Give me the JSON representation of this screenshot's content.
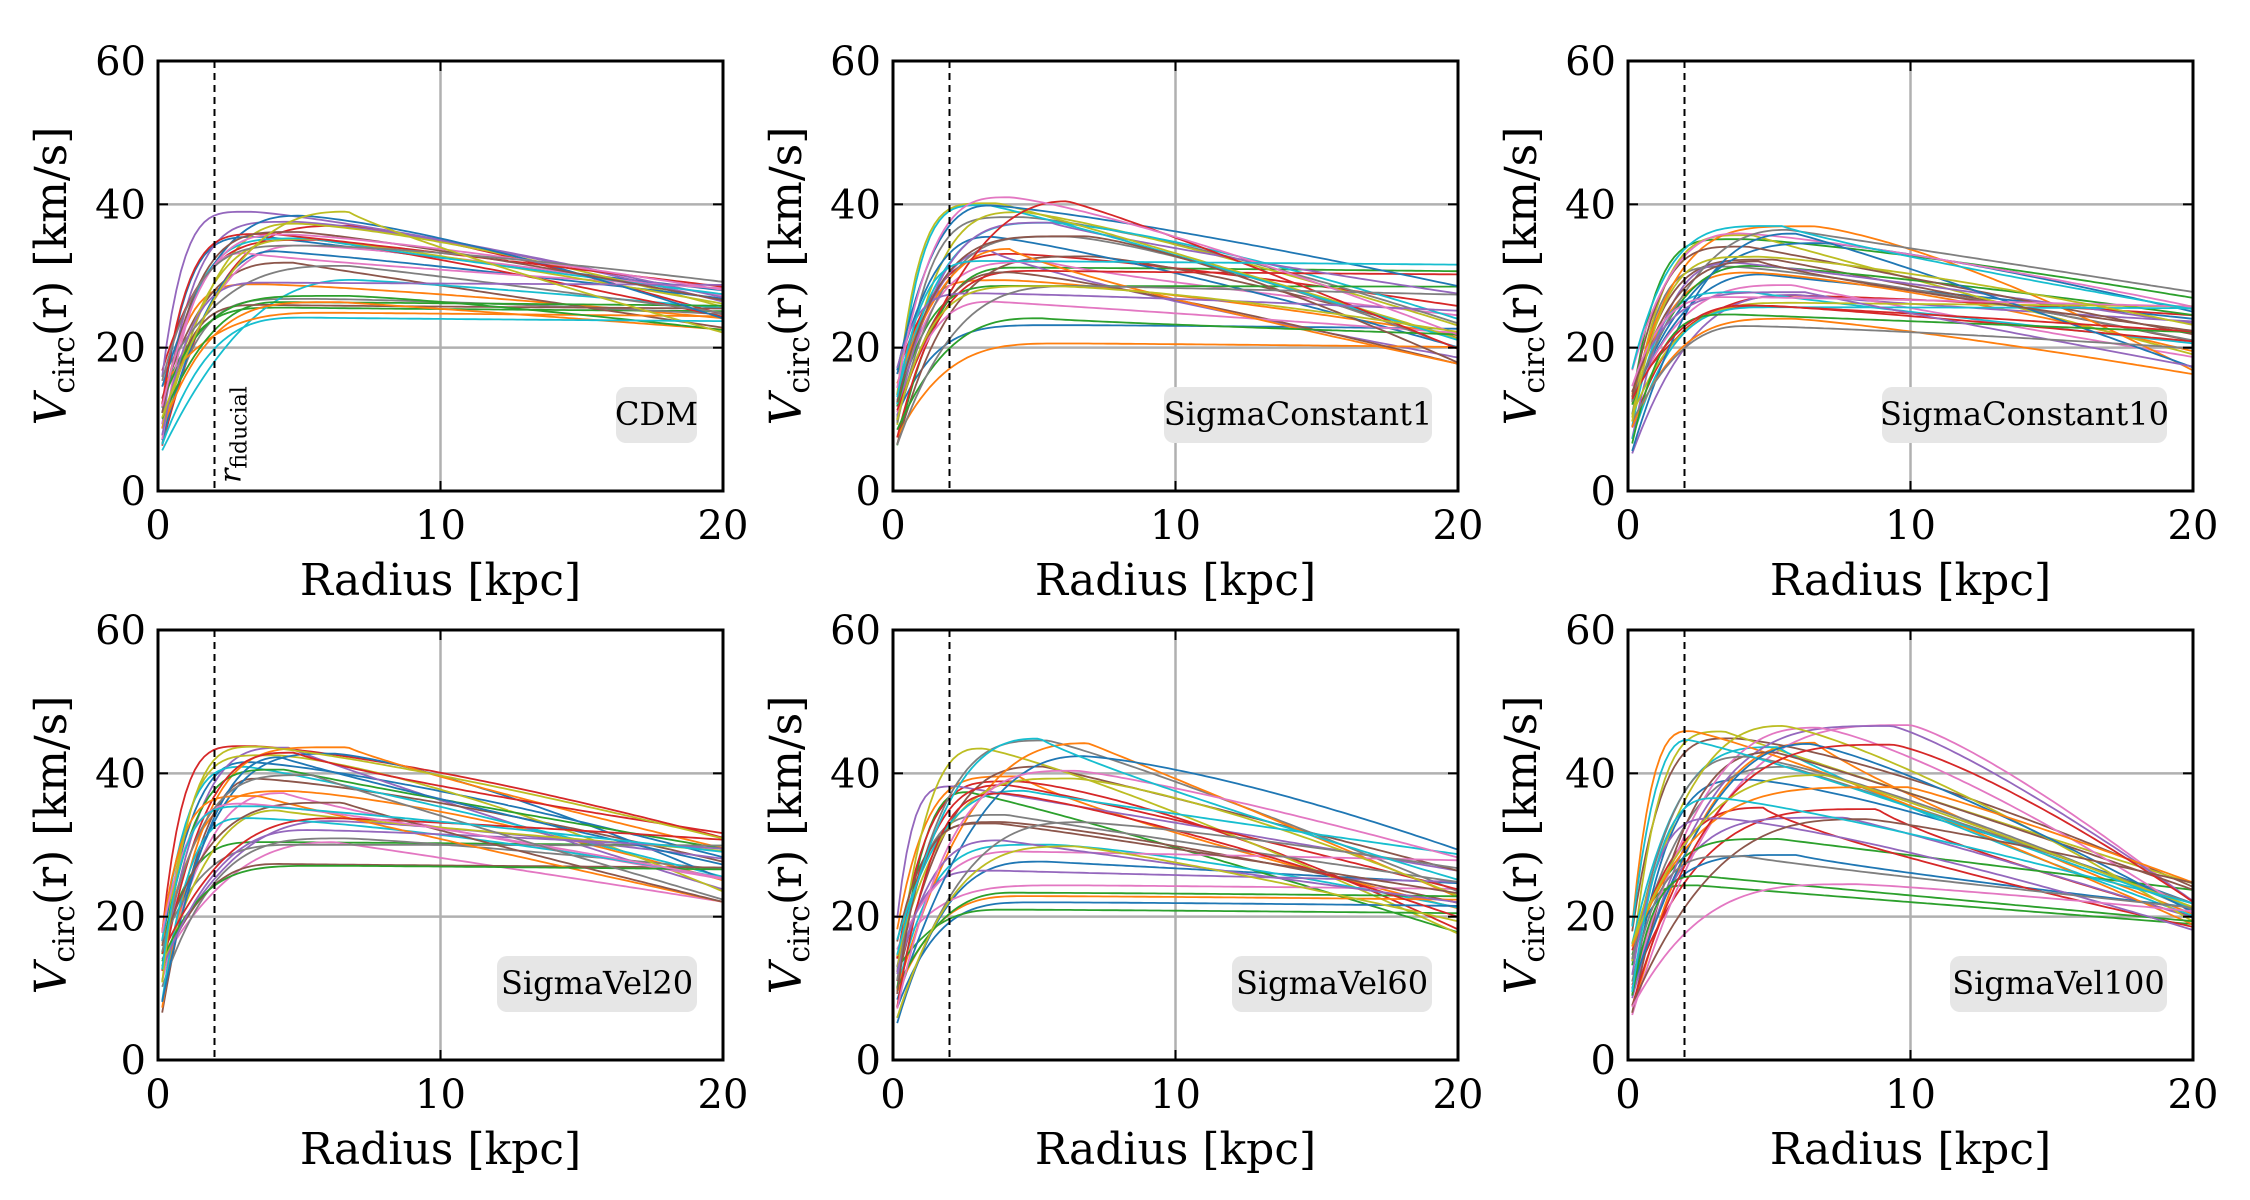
{
  "chart_data": [
    {
      "type": "line",
      "label": "CDM",
      "ylabel": "V_circ(r) [km/s]",
      "ylabel_main": "V",
      "ylabel_sub": "circ",
      "ylabel_arg": "(r)",
      "ylabel_unit": "[km/s]",
      "xlabel": "Radius [kpc]",
      "xlim": [
        0,
        20
      ],
      "ylim": [
        0,
        60
      ],
      "xticks": [
        "0",
        "10",
        "20"
      ],
      "yticks": [
        "0",
        "20",
        "40",
        "60"
      ],
      "grid": true,
      "fiducial_radius": 2,
      "fiducial_label": "r",
      "fiducial_label_sub": "fiducial",
      "curve_family": {
        "count": 30,
        "peak_range_kms": [
          24,
          39
        ],
        "peak_radius_kpc": [
          3,
          7
        ],
        "value_at_20kpc_kms": [
          22,
          30
        ]
      }
    },
    {
      "type": "line",
      "label": "SigmaConstant1",
      "ylabel": "V_circ(r) [km/s]",
      "ylabel_main": "V",
      "ylabel_sub": "circ",
      "ylabel_arg": "(r)",
      "ylabel_unit": "[km/s]",
      "xlabel": "Radius [kpc]",
      "xlim": [
        0,
        20
      ],
      "ylim": [
        0,
        60
      ],
      "xticks": [
        "0",
        "10",
        "20"
      ],
      "yticks": [
        "0",
        "20",
        "40",
        "60"
      ],
      "grid": true,
      "fiducial_radius": 2,
      "curve_family": {
        "count": 30,
        "peak_range_kms": [
          20,
          41
        ],
        "peak_radius_kpc": [
          3,
          7
        ],
        "value_at_20kpc_kms": [
          17,
          34
        ]
      }
    },
    {
      "type": "line",
      "label": "SigmaConstant10",
      "ylabel": "V_circ(r) [km/s]",
      "ylabel_main": "V",
      "ylabel_sub": "circ",
      "ylabel_arg": "(r)",
      "ylabel_unit": "[km/s]",
      "xlabel": "Radius [kpc]",
      "xlim": [
        0,
        20
      ],
      "ylim": [
        0,
        60
      ],
      "xticks": [
        "0",
        "10",
        "20"
      ],
      "yticks": [
        "0",
        "20",
        "40",
        "60"
      ],
      "grid": true,
      "fiducial_radius": 2,
      "curve_family": {
        "count": 30,
        "peak_range_kms": [
          22,
          37
        ],
        "peak_radius_kpc": [
          3,
          7
        ],
        "value_at_20kpc_kms": [
          16,
          28
        ]
      }
    },
    {
      "type": "line",
      "label": "SigmaVel20",
      "ylabel": "V_circ(r) [km/s]",
      "ylabel_main": "V",
      "ylabel_sub": "circ",
      "ylabel_arg": "(r)",
      "ylabel_unit": "[km/s]",
      "xlabel": "Radius [kpc]",
      "xlim": [
        0,
        20
      ],
      "ylim": [
        0,
        60
      ],
      "xticks": [
        "0",
        "10",
        "20"
      ],
      "yticks": [
        "0",
        "20",
        "40",
        "60"
      ],
      "grid": true,
      "fiducial_radius": 2,
      "curve_family": {
        "count": 30,
        "peak_range_kms": [
          24,
          44
        ],
        "peak_radius_kpc": [
          3,
          7
        ],
        "value_at_20kpc_kms": [
          22,
          32
        ]
      }
    },
    {
      "type": "line",
      "label": "SigmaVel60",
      "ylabel": "V_circ(r) [km/s]",
      "ylabel_main": "V",
      "ylabel_sub": "circ",
      "ylabel_arg": "(r)",
      "ylabel_unit": "[km/s]",
      "xlabel": "Radius [kpc]",
      "xlim": [
        0,
        20
      ],
      "ylim": [
        0,
        60
      ],
      "xticks": [
        "0",
        "10",
        "20"
      ],
      "yticks": [
        "0",
        "20",
        "40",
        "60"
      ],
      "grid": true,
      "fiducial_radius": 2,
      "curve_family": {
        "count": 30,
        "peak_range_kms": [
          20,
          45
        ],
        "peak_radius_kpc": [
          2,
          7
        ],
        "value_at_20kpc_kms": [
          17,
          30
        ]
      }
    },
    {
      "type": "line",
      "label": "SigmaVel100",
      "ylabel": "V_circ(r) [km/s]",
      "ylabel_main": "V",
      "ylabel_sub": "circ",
      "ylabel_arg": "(r)",
      "ylabel_unit": "[km/s]",
      "xlabel": "Radius [kpc]",
      "xlim": [
        0,
        20
      ],
      "ylim": [
        0,
        60
      ],
      "xticks": [
        "0",
        "10",
        "20"
      ],
      "yticks": [
        "0",
        "20",
        "40",
        "60"
      ],
      "grid": true,
      "fiducial_radius": 2,
      "curve_family": {
        "count": 30,
        "peak_range_kms": [
          23,
          47
        ],
        "peak_radius_kpc": [
          2,
          10
        ],
        "value_at_20kpc_kms": [
          18,
          25
        ]
      }
    }
  ],
  "colors": {
    "series": [
      "#1f77b4",
      "#ff7f0e",
      "#2ca02c",
      "#d62728",
      "#9467bd",
      "#8c564b",
      "#e377c2",
      "#7f7f7f",
      "#bcbd22",
      "#17becf"
    ],
    "grid": "#b0b0b0",
    "label_box": "#e6e6e6"
  }
}
